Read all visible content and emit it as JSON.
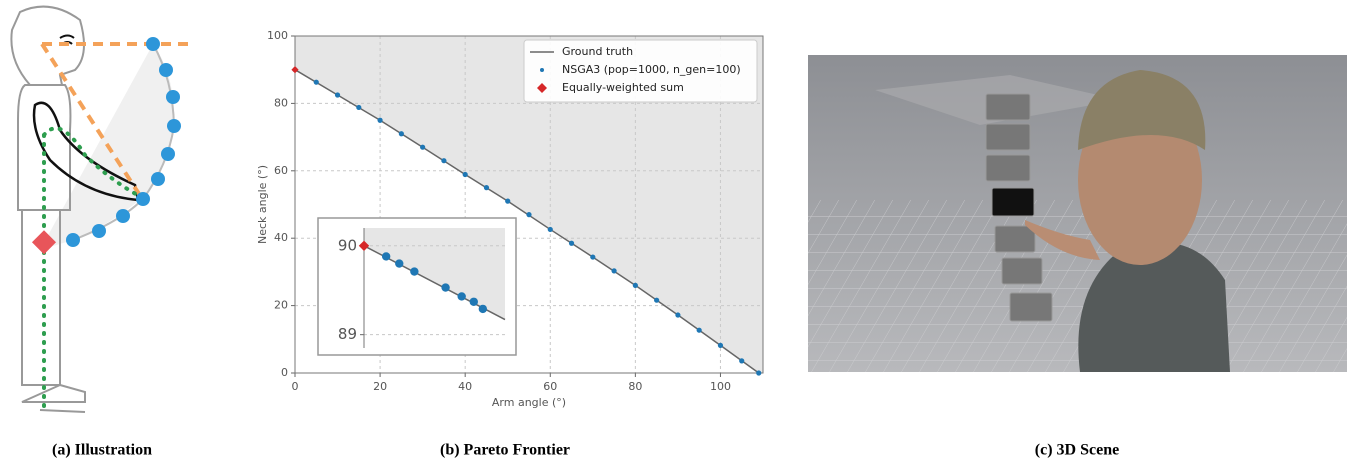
{
  "panels": [
    {
      "caption": "(a) Illustration"
    },
    {
      "caption": "(b) Pareto Frontier"
    },
    {
      "caption": "(c) 3D Scene"
    }
  ],
  "chart_data": [
    {
      "type": "line",
      "xlabel": "Arm angle (°)",
      "ylabel": "Neck angle (°)",
      "xlim": [
        0,
        110
      ],
      "ylim": [
        0,
        100
      ],
      "xticks": [
        0,
        20,
        40,
        60,
        80,
        100
      ],
      "yticks": [
        0,
        20,
        40,
        60,
        80,
        100
      ],
      "grid": true,
      "legend": "upper right",
      "series": [
        {
          "name": "Ground truth",
          "color": "#666666",
          "style": "line",
          "x": [
            0,
            10,
            20,
            30,
            40,
            50,
            60,
            70,
            80,
            90,
            100,
            109
          ],
          "values": [
            90,
            82.5,
            75,
            67,
            58.9,
            51,
            42.6,
            34.4,
            26,
            17.2,
            8.2,
            0
          ]
        },
        {
          "name": "NSGA3 (pop=1000, n_gen=100)",
          "color": "#1f77b4",
          "style": "scatter",
          "x": [
            0,
            5,
            10,
            15,
            20,
            25,
            30,
            35,
            40,
            45,
            50,
            55,
            60,
            65,
            70,
            75,
            80,
            85,
            90,
            95,
            100,
            105,
            109
          ],
          "values": [
            90,
            86.3,
            82.5,
            78.8,
            75,
            71,
            67,
            63,
            58.9,
            55,
            51,
            47,
            42.6,
            38.5,
            34.4,
            30.3,
            26,
            21.6,
            17.2,
            12.7,
            8.2,
            3.6,
            0
          ]
        },
        {
          "name": "Equally-weighted sum",
          "color": "#d62728",
          "style": "diamond",
          "x": [
            0
          ],
          "values": [
            90
          ]
        }
      ]
    },
    {
      "type": "line",
      "xlim": [
        0,
        1.4
      ],
      "ylim": [
        88.85,
        90.2
      ],
      "yticks": [
        89,
        90
      ],
      "grid": true,
      "series": [
        {
          "color": "#666666",
          "style": "line",
          "x": [
            0,
            1.4
          ],
          "values": [
            90,
            89.17
          ]
        },
        {
          "color": "#1f77b4",
          "style": "scatter",
          "x": [
            0.22,
            0.35,
            0.5,
            0.81,
            0.97,
            1.09,
            1.18
          ],
          "values": [
            89.88,
            89.8,
            89.71,
            89.53,
            89.43,
            89.37,
            89.29
          ]
        },
        {
          "color": "#d62728",
          "style": "diamond",
          "x": [
            0
          ],
          "values": [
            90
          ]
        }
      ]
    }
  ]
}
